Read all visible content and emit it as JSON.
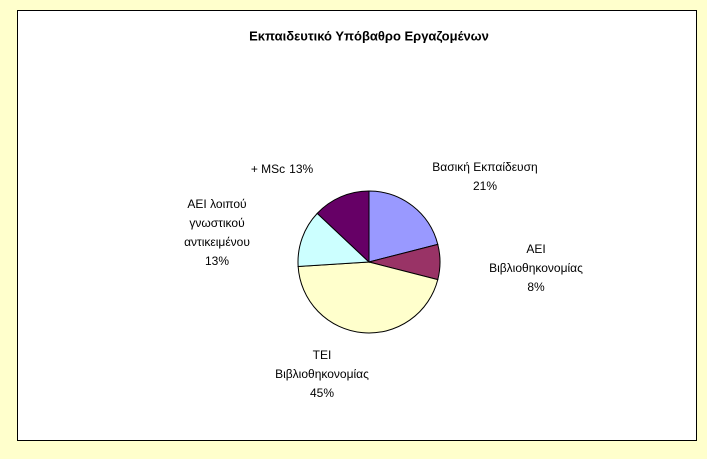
{
  "chart_data": {
    "type": "pie",
    "title": "Εκπαιδευτικό Υπόβαθρο Εργαζομένων",
    "categories": [
      [
        "Βασική Εκπαίδευση"
      ],
      [
        "ΑΕΙ",
        "Βιβλιοθηκονομίας"
      ],
      [
        "ΤΕΙ",
        "Βιβλιοθηκονομίας"
      ],
      [
        "ΑΕΙ λοιπού",
        "γνωστικού",
        "αντικειμένου"
      ],
      [
        "+ MSc"
      ]
    ],
    "values": [
      21,
      8,
      45,
      13,
      13
    ],
    "value_labels": [
      "21%",
      "8%",
      "45%",
      "13%",
      "13%"
    ],
    "colors": [
      "#9999ff",
      "#993366",
      "#ffffcc",
      "#ccffff",
      "#660066"
    ]
  }
}
